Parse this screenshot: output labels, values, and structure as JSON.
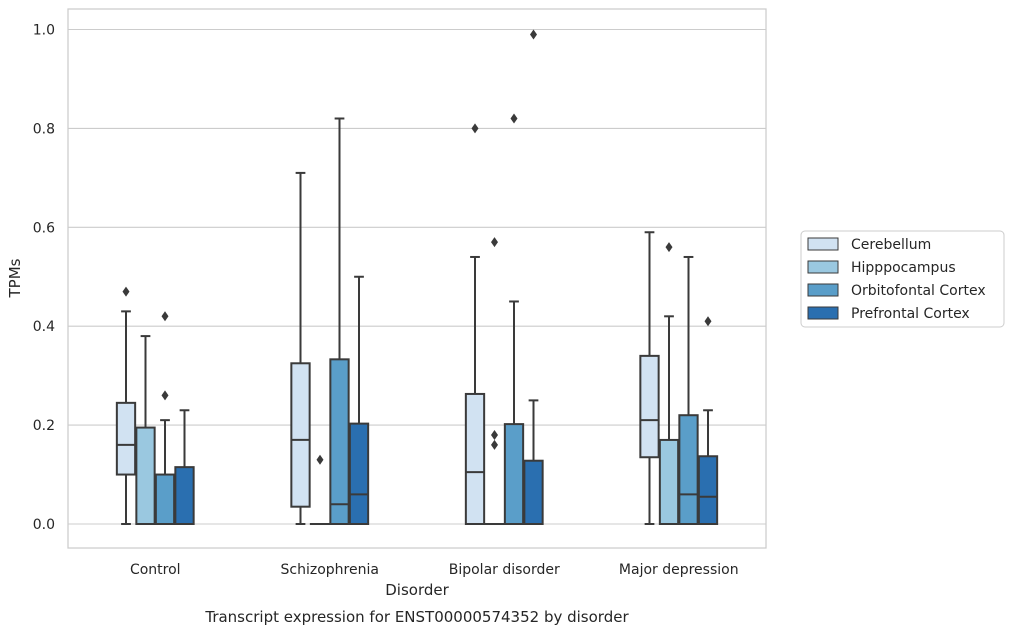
{
  "chart_data": {
    "type": "box",
    "xlabel": "Disorder",
    "ylabel": "TPMs",
    "caption": "Transcript expression for ENST00000574352 by disorder",
    "ylim": [
      -0.05,
      1.04
    ],
    "yticks": [
      "0.0",
      "0.2",
      "0.4",
      "0.6",
      "0.8",
      "1.0"
    ],
    "categories": [
      "Control",
      "Schizophrenia",
      "Bipolar disorder",
      "Major depression"
    ],
    "grid": "horizontal",
    "legend_position": "right",
    "series": [
      {
        "name": "Cerebellum",
        "color": "#d1e2f2",
        "boxes": [
          {
            "whislo": 0.0,
            "q1": 0.1,
            "med": 0.16,
            "q3": 0.245,
            "whishi": 0.43,
            "fliers": [
              0.47
            ]
          },
          {
            "whislo": 0.0,
            "q1": 0.035,
            "med": 0.17,
            "q3": 0.325,
            "whishi": 0.71,
            "fliers": []
          },
          {
            "whislo": 0.0,
            "q1": 0.0,
            "med": 0.105,
            "q3": 0.263,
            "whishi": 0.54,
            "fliers": [
              0.8
            ]
          },
          {
            "whislo": 0.0,
            "q1": 0.135,
            "med": 0.21,
            "q3": 0.34,
            "whishi": 0.59,
            "fliers": []
          }
        ]
      },
      {
        "name": "Hipppocampus",
        "color": "#9ac8e0",
        "boxes": [
          {
            "whislo": 0.0,
            "q1": 0.0,
            "med": 0.0,
            "q3": 0.195,
            "whishi": 0.38,
            "fliers": []
          },
          {
            "whislo": 0.0,
            "q1": 0.0,
            "med": 0.0,
            "q3": 0.0,
            "whishi": 0.0,
            "fliers": [
              0.13
            ]
          },
          {
            "whislo": 0.0,
            "q1": 0.0,
            "med": 0.0,
            "q3": 0.0,
            "whishi": 0.0,
            "fliers": [
              0.16,
              0.18,
              0.57
            ]
          },
          {
            "whislo": 0.0,
            "q1": 0.0,
            "med": 0.0,
            "q3": 0.17,
            "whishi": 0.42,
            "fliers": [
              0.56
            ]
          }
        ]
      },
      {
        "name": "Orbitofontal Cortex",
        "color": "#5a9ec9",
        "boxes": [
          {
            "whislo": 0.0,
            "q1": 0.0,
            "med": 0.0,
            "q3": 0.1,
            "whishi": 0.21,
            "fliers": [
              0.26,
              0.42
            ]
          },
          {
            "whislo": 0.0,
            "q1": 0.0,
            "med": 0.04,
            "q3": 0.333,
            "whishi": 0.82,
            "fliers": []
          },
          {
            "whislo": 0.0,
            "q1": 0.0,
            "med": 0.0,
            "q3": 0.202,
            "whishi": 0.45,
            "fliers": [
              0.82
            ]
          },
          {
            "whislo": 0.0,
            "q1": 0.0,
            "med": 0.06,
            "q3": 0.22,
            "whishi": 0.54,
            "fliers": []
          }
        ]
      },
      {
        "name": "Prefrontal Cortex",
        "color": "#2a6fb0",
        "boxes": [
          {
            "whislo": 0.0,
            "q1": 0.0,
            "med": 0.0,
            "q3": 0.115,
            "whishi": 0.23,
            "fliers": []
          },
          {
            "whislo": 0.0,
            "q1": 0.0,
            "med": 0.06,
            "q3": 0.203,
            "whishi": 0.5,
            "fliers": []
          },
          {
            "whislo": 0.0,
            "q1": 0.0,
            "med": 0.0,
            "q3": 0.128,
            "whishi": 0.25,
            "fliers": [
              0.99
            ]
          },
          {
            "whislo": 0.0,
            "q1": 0.0,
            "med": 0.055,
            "q3": 0.137,
            "whishi": 0.23,
            "fliers": [
              0.41
            ]
          }
        ]
      }
    ]
  }
}
